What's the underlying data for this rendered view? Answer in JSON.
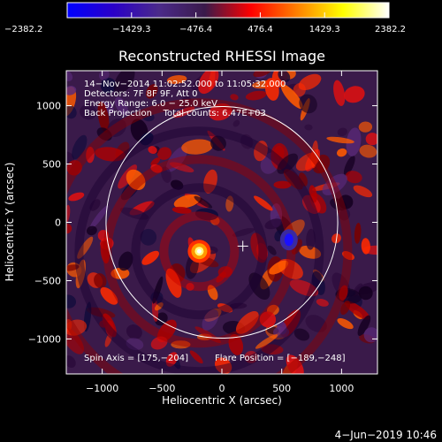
{
  "chart_data": {
    "type": "heatmap",
    "title": "Reconstructed RHESSI Image",
    "xlabel": "Heliocentric X (arcsec)",
    "ylabel": "Heliocentric Y (arcsec)",
    "xlim": [
      -1300,
      1300
    ],
    "ylim": [
      -1300,
      1300
    ],
    "x_ticks": [
      -1000,
      -500,
      0,
      500,
      1000
    ],
    "y_ticks": [
      -1000,
      -500,
      0,
      500,
      1000
    ],
    "x_tick_labels": [
      "−1000",
      "−500",
      "0",
      "500",
      "1000"
    ],
    "y_tick_labels": [
      "−1000",
      "−500",
      "0",
      "500",
      "1000"
    ],
    "colorbar": {
      "range": [
        -2382.2,
        2382.2
      ],
      "ticks": [
        -2382.2,
        -1429.3,
        -476.4,
        476.4,
        1429.3,
        2382.2
      ],
      "tick_labels": [
        "−2382.2",
        "−1429.3",
        "−476.4",
        "476.4",
        "1429.3",
        "2382.2"
      ],
      "colors": [
        "#0000ff",
        "#2a00c8",
        "#4b2a8a",
        "#3a1a4a",
        "#ff0000",
        "#ff8000",
        "#ffff00",
        "#ffffff"
      ]
    },
    "info_lines": [
      "14−Nov−2014 11:02:52.000 to 11:05:32.000",
      "Detectors: 7F 8F 9F, Att 0",
      "Energy Range: 6.0 − 25.0 keV",
      "Back Projection    Total counts: 6.47E+03"
    ],
    "spin_axis_text": "Spin Axis = [175,−204]",
    "flare_position_text": "Flare Position = [−189,−248]",
    "solar_limb_radius_arcsec": 968,
    "spin_axis": [
      175,
      -204
    ],
    "flare_position": [
      -189,
      -248
    ],
    "sources": [
      {
        "x": -189,
        "y": -248,
        "value": 2382.2
      },
      {
        "x": 560,
        "y": -150,
        "value": -1429.3
      }
    ],
    "grid": false,
    "legend": "none"
  },
  "footer_date": "4−Jun−2019 10:46",
  "colors": {
    "background": "#000000",
    "foreground": "#ffffff"
  }
}
